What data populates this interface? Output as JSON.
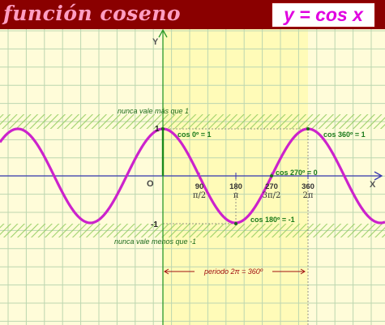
{
  "header": {
    "title": "función coseno",
    "formula": "y = cos x"
  },
  "colors": {
    "background": "#fffcd9",
    "highlight_band": "#fffbb8",
    "header": "#8a0000",
    "title": "#ff9ec3",
    "curve": "#cc22cc",
    "axis": "#3a3ab0",
    "annotation": "#1a7a1a",
    "period": "#a01010",
    "grid": "#bcd6b0",
    "hatch": "#8ecb5a"
  },
  "axes": {
    "x_label": "X",
    "y_label": "Y",
    "origin_label": "O",
    "y_tick_top": "1",
    "y_tick_bottom": "-1",
    "x_ticks": [
      {
        "deg": "90",
        "rad": "π/2"
      },
      {
        "deg": "180",
        "rad": "π"
      },
      {
        "deg": "270",
        "rad": "3π/2"
      },
      {
        "deg": "360",
        "rad": "2π"
      }
    ]
  },
  "annotations": {
    "max_note": "nunca vale más que 1",
    "min_note": "nunca vale menos que -1",
    "cos0": "cos 0º = 1",
    "cos360": "cos 360º = 1",
    "cos270": "cos 270º = 0",
    "cos180": "cos 180º = -1",
    "period": "periodo 2π = 360º"
  }
}
